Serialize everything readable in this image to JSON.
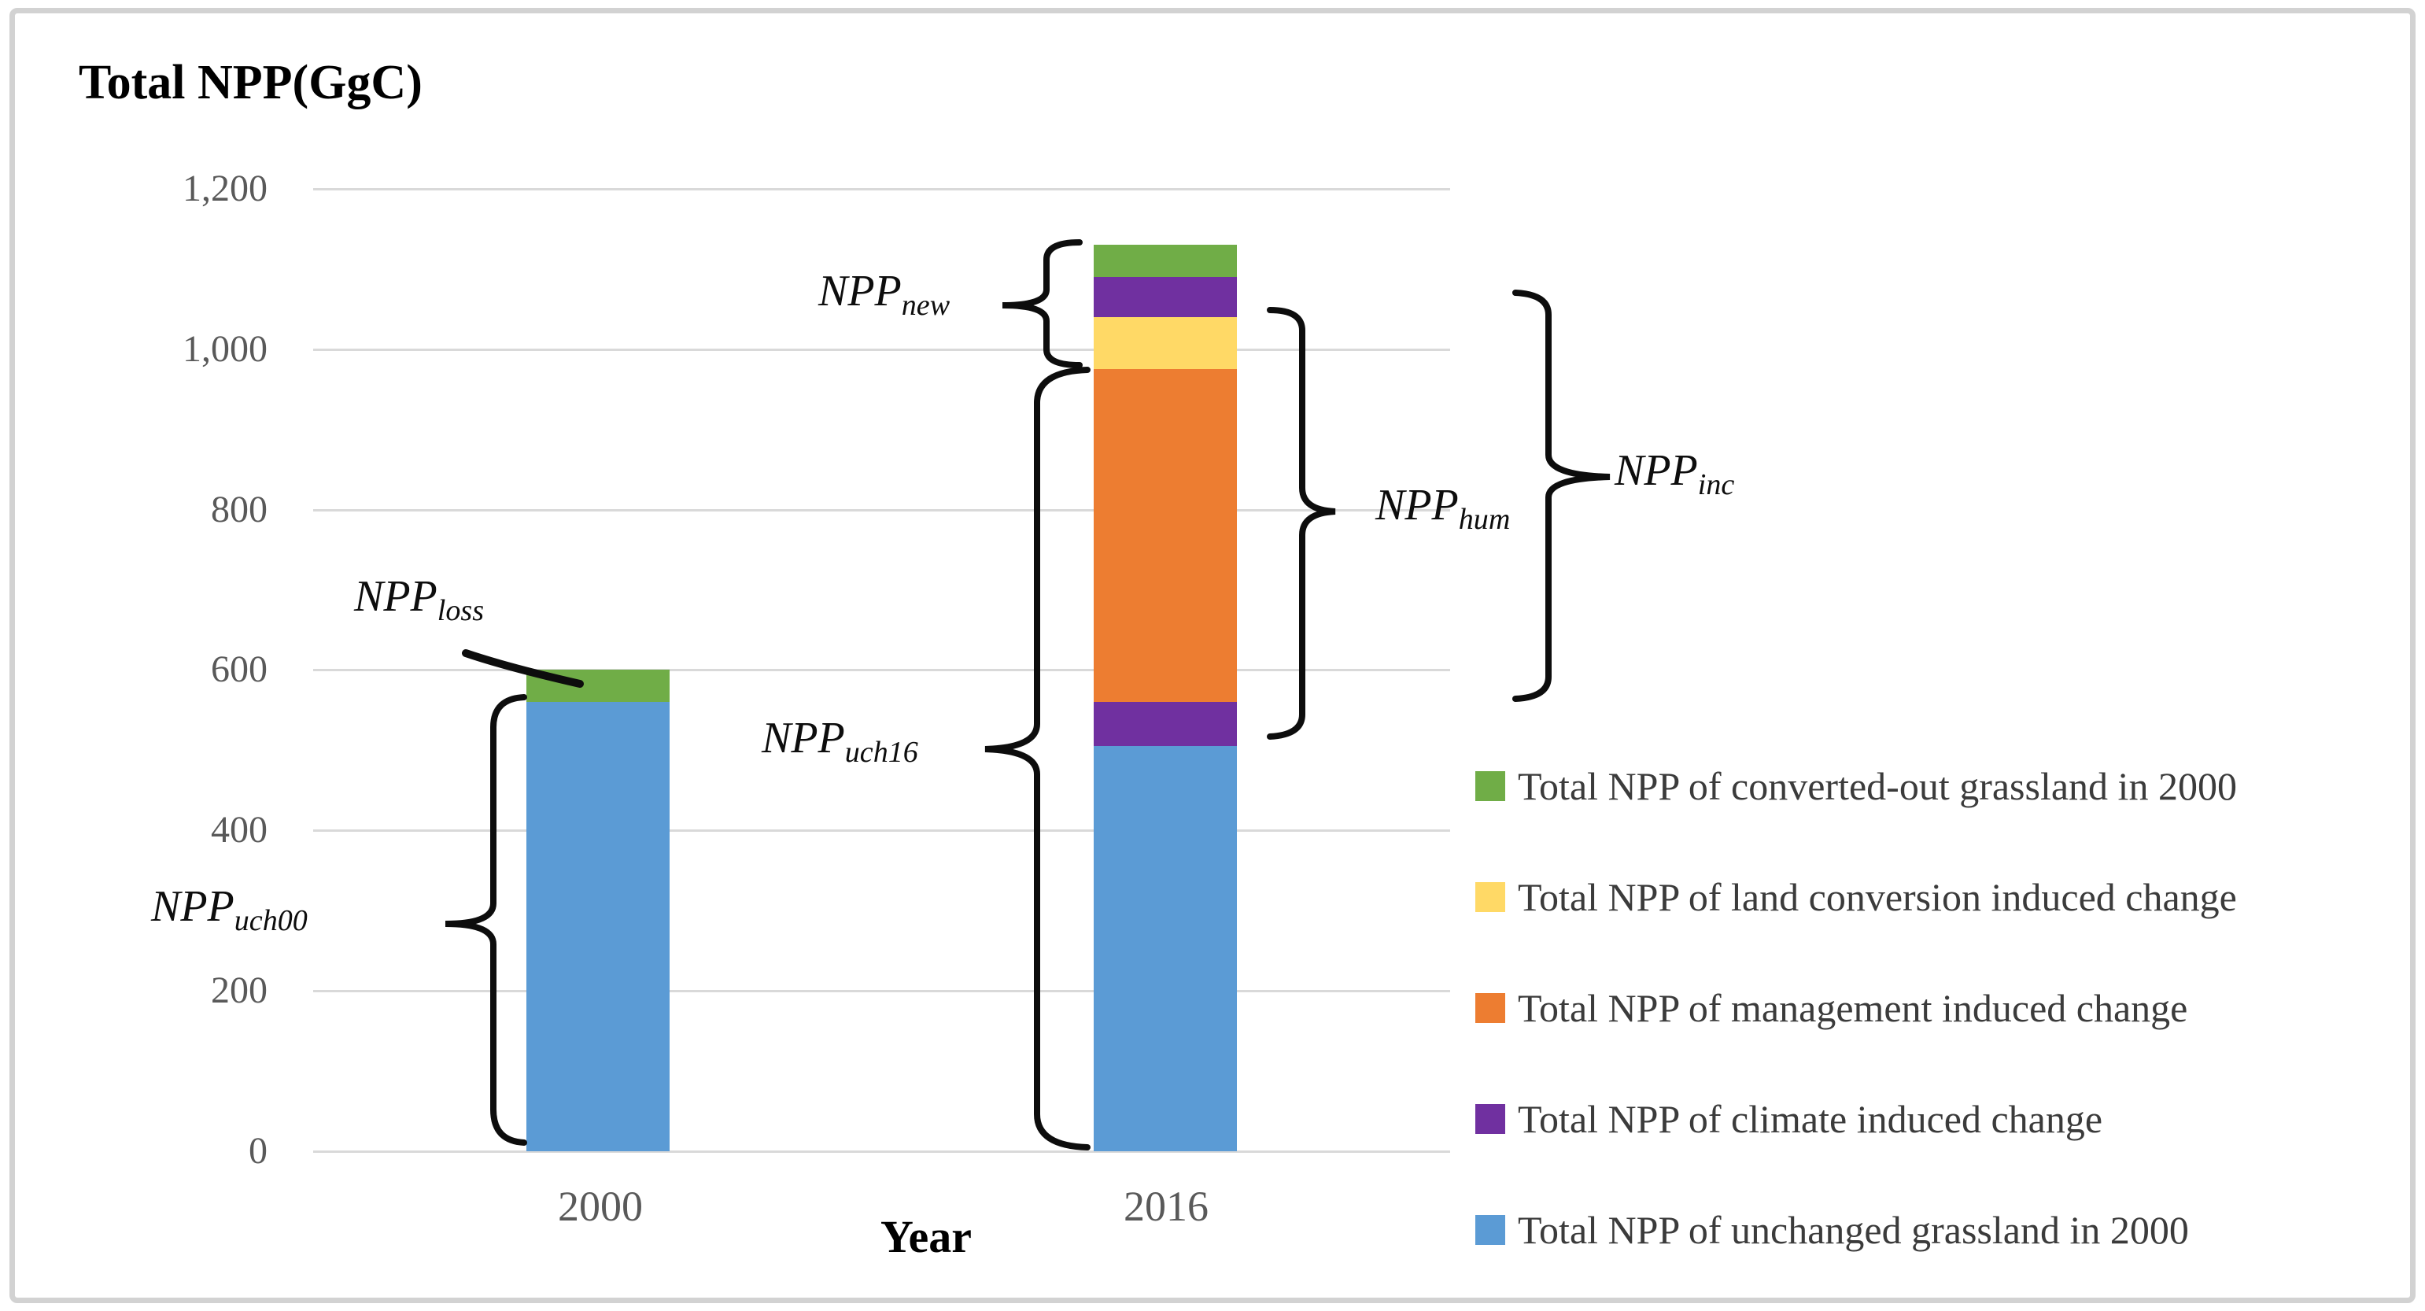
{
  "figure": {
    "title": "Total NPP(GgC)"
  },
  "axis": {
    "x_label": "Year",
    "categories": [
      "2000",
      "2016"
    ],
    "ytick_labels": [
      "1,200",
      "1,000",
      "800",
      "600",
      "400",
      "200",
      "0"
    ]
  },
  "legend": {
    "items": [
      {
        "label": "Total NPP of converted-out grassland in 2000",
        "color": "#70AD47",
        "swatch": "green"
      },
      {
        "label": "Total NPP of land conversion induced change",
        "color": "#FFD966",
        "swatch": "yellow"
      },
      {
        "label": "Total NPP of management induced change",
        "color": "#ED7D31",
        "swatch": "orange"
      },
      {
        "label": "Total NPP of climate induced change",
        "color": "#7030A0",
        "swatch": "purple"
      },
      {
        "label": "Total NPP of unchanged grassland in 2000",
        "color": "#5B9BD5",
        "swatch": "blue"
      }
    ]
  },
  "annotations": [
    {
      "id": "loss",
      "main": "NPP",
      "sub": "loss"
    },
    {
      "id": "uch00",
      "main": "NPP",
      "sub": "uch00"
    },
    {
      "id": "new",
      "main": "NPP",
      "sub": "new"
    },
    {
      "id": "uch16",
      "main": "NPP",
      "sub": "uch16"
    },
    {
      "id": "hum",
      "main": "NPP",
      "sub": "hum"
    },
    {
      "id": "inc",
      "main": "NPP",
      "sub": "inc"
    }
  ],
  "chart_data": {
    "type": "bar",
    "stacked": true,
    "title": "Total NPP(GgC)",
    "xlabel": "Year",
    "ylabel": "Total NPP (GgC)",
    "ylim": [
      0,
      1200
    ],
    "ytick_values": [
      1200,
      1000,
      800,
      600,
      400,
      200,
      0
    ],
    "grid": true,
    "legend_position": "right",
    "categories": [
      "2000",
      "2016"
    ],
    "bars": [
      {
        "category": "2000",
        "total": 600,
        "segments": [
          {
            "label": "Total NPP of unchanged grassland in 2000",
            "color": "#5B9BD5",
            "value": 560
          },
          {
            "label": "Total NPP of converted-out grassland in 2000",
            "color": "#70AD47",
            "value": 40
          }
        ]
      },
      {
        "category": "2016",
        "total": 1130,
        "segments": [
          {
            "label": "Total NPP of unchanged grassland in 2000",
            "color": "#5B9BD5",
            "value": 505
          },
          {
            "label": "Total NPP of climate induced change",
            "color": "#7030A0",
            "value": 55
          },
          {
            "label": "Total NPP of management induced change",
            "color": "#ED7D31",
            "value": 415
          },
          {
            "label": "Total NPP of land conversion induced change",
            "color": "#FFD966",
            "value": 65
          },
          {
            "label": "Total NPP of climate induced change",
            "color": "#7030A0",
            "value": 50
          },
          {
            "label": "Total NPP of converted-out grassland in 2000",
            "color": "#70AD47",
            "value": 40
          }
        ]
      }
    ]
  }
}
